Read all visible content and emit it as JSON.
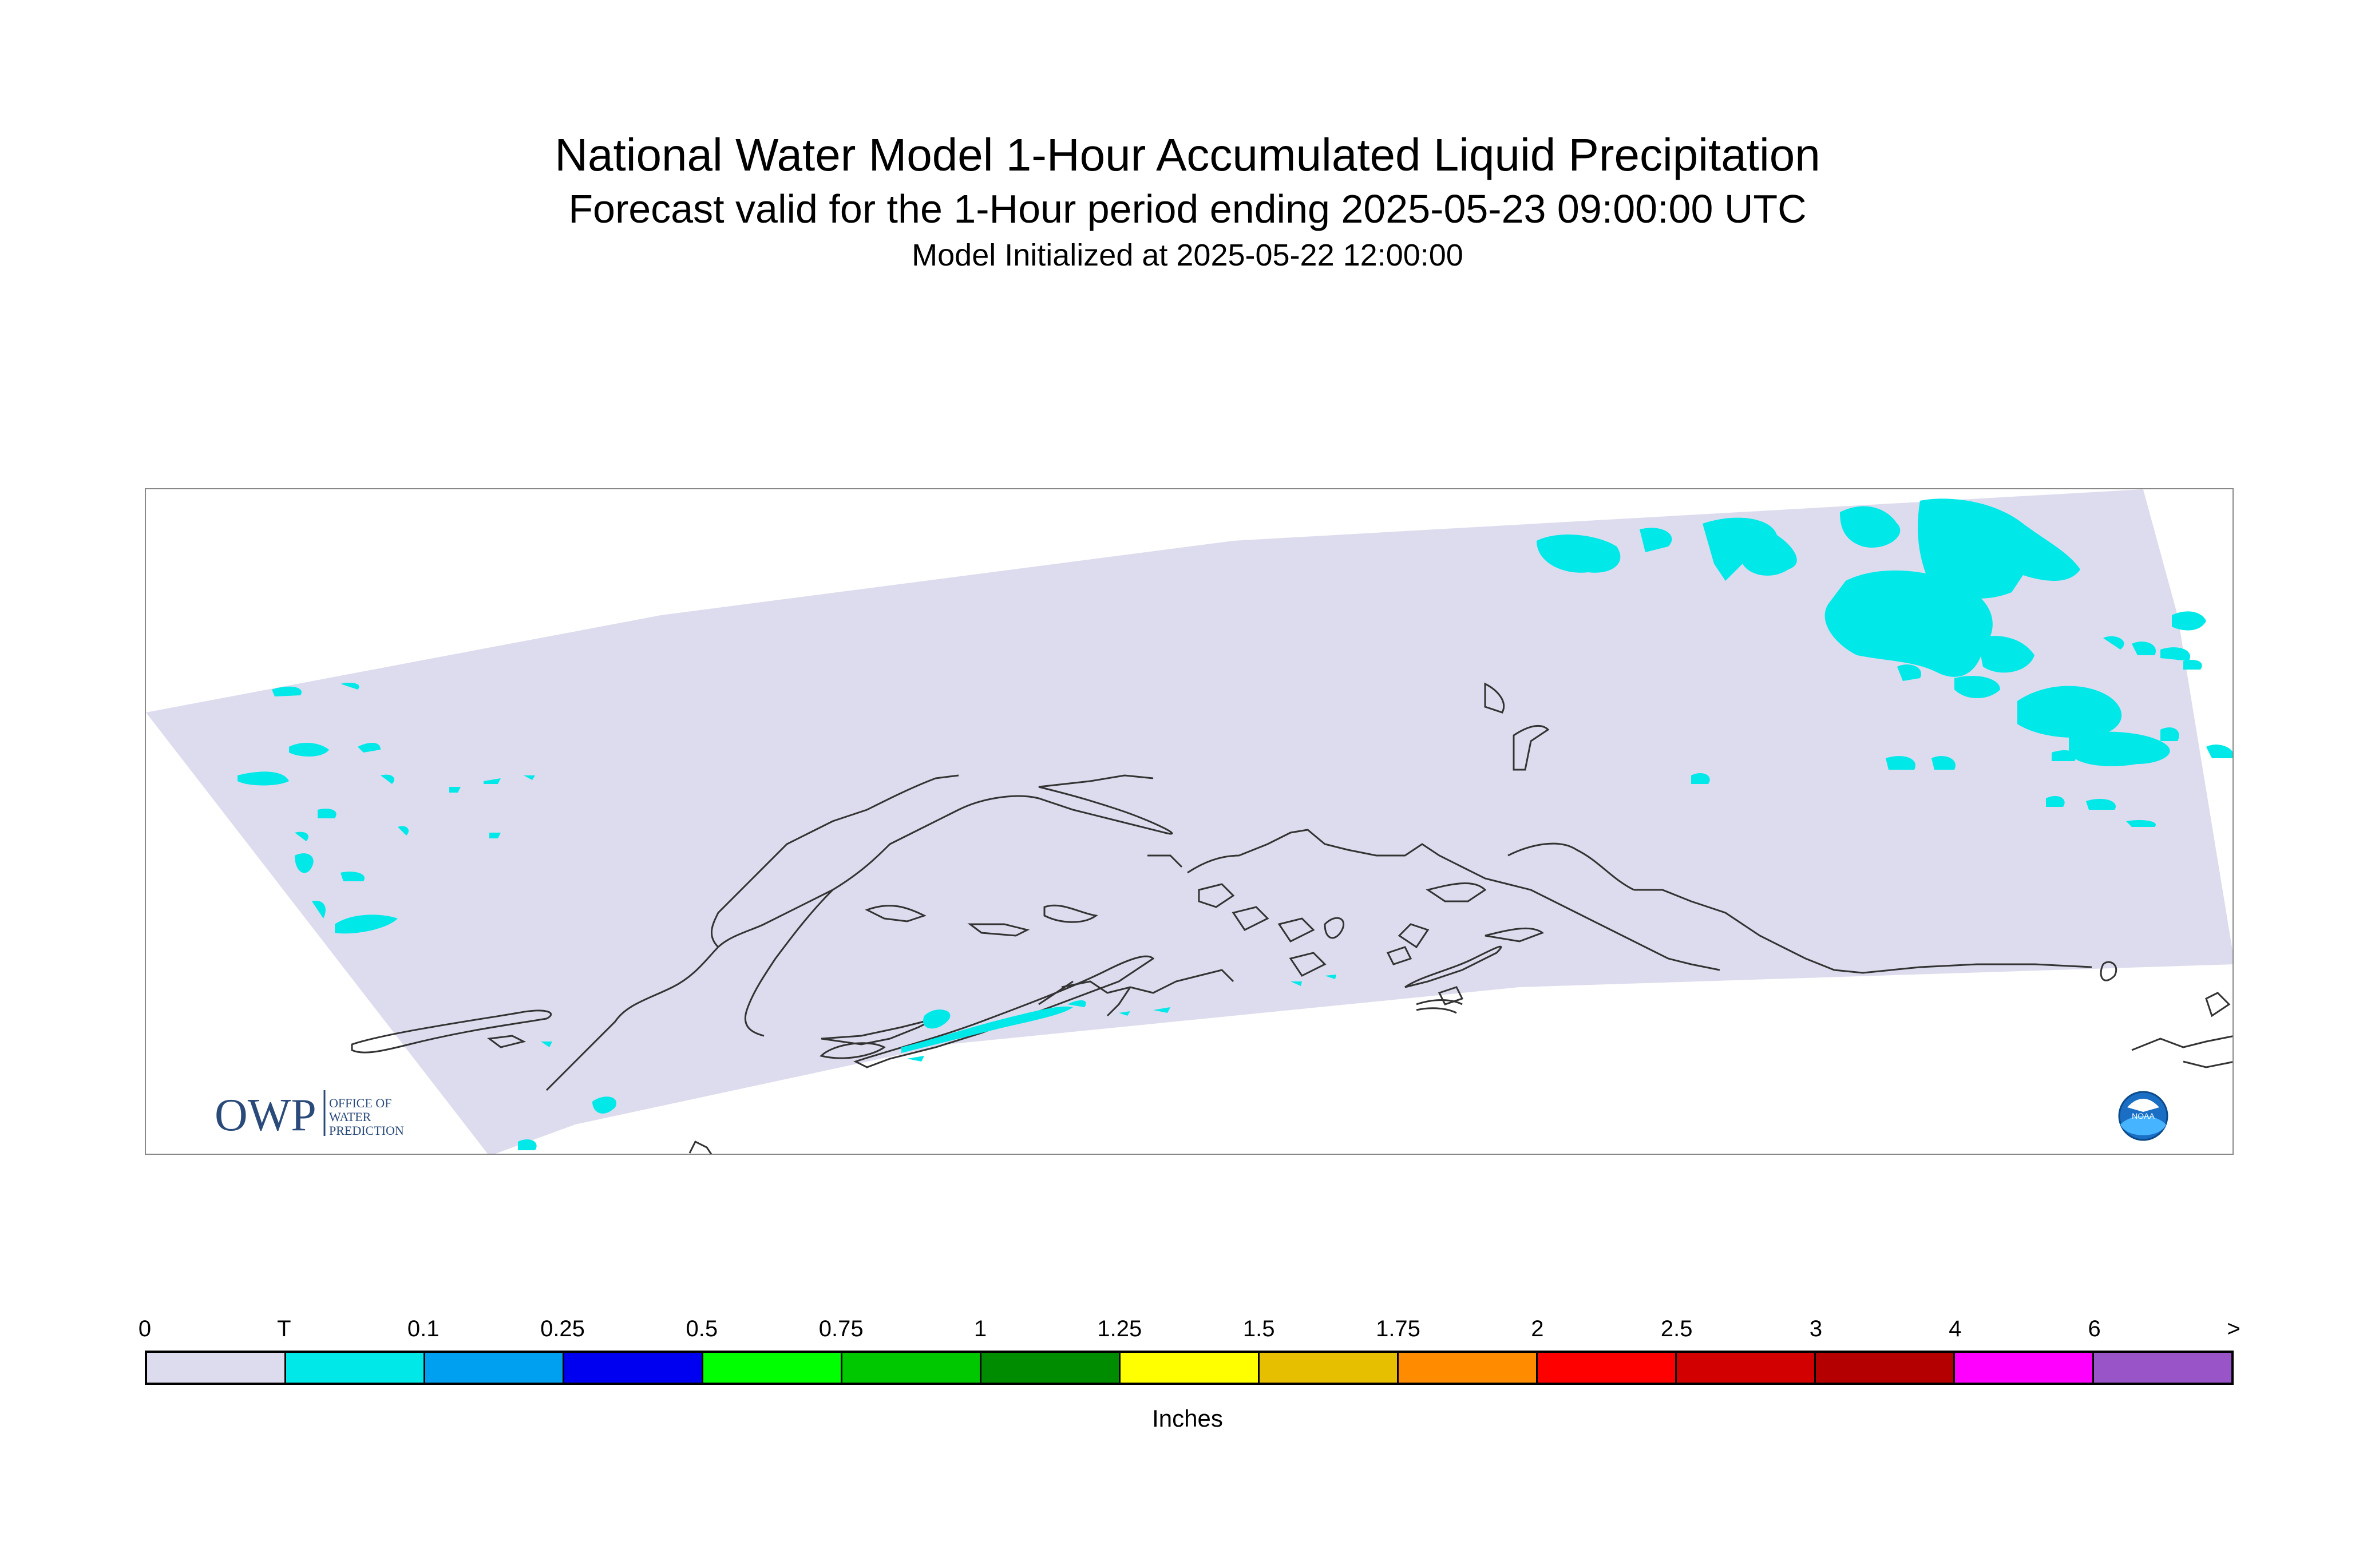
{
  "title": "National Water Model 1-Hour Accumulated Liquid Precipitation",
  "subtitle": "Forecast valid for the 1-Hour period ending 2025-05-23 09:00:00 UTC",
  "init_line": "Model Initialized at 2025-05-22 12:00:00",
  "map": {
    "domain_fill": "#dcdcee",
    "precip_trace_color": "#00e8e8",
    "coastline_color": "#333333",
    "owp_logo": {
      "letters": "OWP",
      "line1": "OFFICE OF",
      "line2": "WATER",
      "line3": "PREDICTION",
      "color": "#2a4a7a"
    },
    "noaa_logo": {
      "label": "NOAA",
      "color": "#1a6fc4"
    }
  },
  "legend": {
    "units": "Inches",
    "ticks": [
      "0",
      "T",
      "0.1",
      "0.25",
      "0.5",
      "0.75",
      "1",
      "1.25",
      "1.5",
      "1.75",
      "2",
      "2.5",
      "3",
      "4",
      "6",
      ">"
    ],
    "colors": [
      "#dcdcee",
      "#00e8e8",
      "#00a0f0",
      "#0000f0",
      "#00ff00",
      "#00c800",
      "#008c00",
      "#ffff00",
      "#e6c000",
      "#ff8c00",
      "#ff0000",
      "#d20000",
      "#b40000",
      "#ff00ff",
      "#9955c8"
    ]
  }
}
